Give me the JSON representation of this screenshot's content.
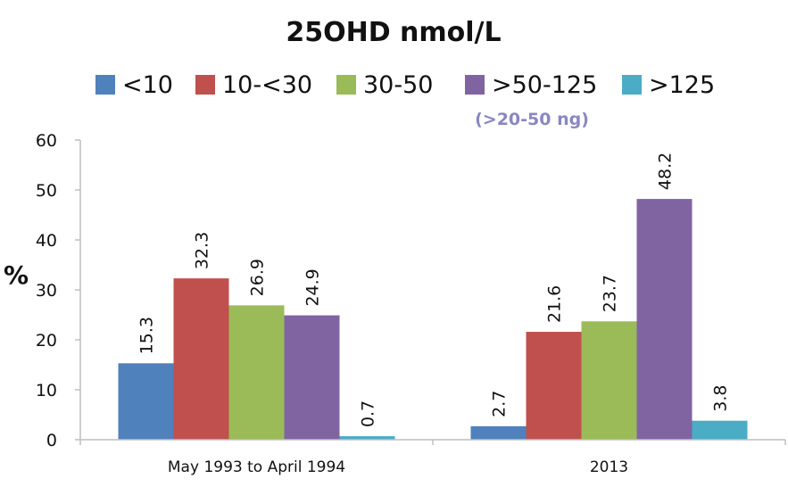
{
  "chart_data": {
    "type": "bar",
    "title": "25OHD nmol/L",
    "legend_note": "(>20-50 ng)",
    "ylabel": "%",
    "xlabel": "",
    "ylim": [
      0,
      60
    ],
    "yticks": [
      0,
      10,
      20,
      30,
      40,
      50,
      60
    ],
    "grid": false,
    "legend_position": "top",
    "categories": [
      "May 1993 to April 1994",
      "2013"
    ],
    "series": [
      {
        "name": "<10",
        "color": "#4f81bd",
        "values": [
          15.3,
          2.7
        ],
        "labels": [
          "15.3",
          "2.7"
        ]
      },
      {
        "name": "10-<30",
        "color": "#c0504d",
        "values": [
          32.3,
          21.6
        ],
        "labels": [
          "32.3",
          "21.6"
        ]
      },
      {
        "name": "30-50",
        "color": "#9bbb59",
        "values": [
          26.9,
          23.7
        ],
        "labels": [
          "26.9",
          "23.7"
        ]
      },
      {
        "name": ">50-125",
        "color": "#8064a2",
        "values": [
          24.9,
          48.2
        ],
        "labels": [
          "24.9",
          "48.2"
        ]
      },
      {
        "name": ">125",
        "color": "#4bacc6",
        "values": [
          0.7,
          3.8
        ],
        "labels": [
          "0.7",
          "3.8"
        ]
      }
    ]
  }
}
